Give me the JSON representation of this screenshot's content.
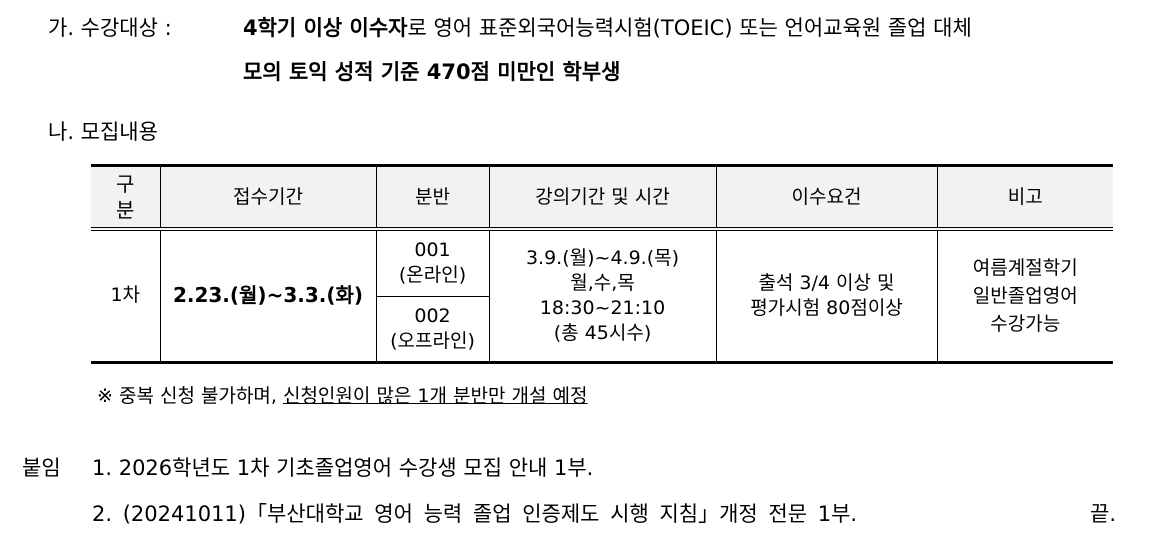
{
  "target": {
    "label": "가. 수강대상 :",
    "bold1": "4학기 이상 이수자",
    "rest1": "로 영어 표준외국어능력시험(TOEIC) 또는 언어교육원 졸업 대체",
    "line2": "모의 토익 성적 기준 470점 미만인 학부생"
  },
  "recruit": {
    "label": "나. 모집내용"
  },
  "table": {
    "headers": [
      "구 분",
      "접수기간",
      "분반",
      "강의기간 및 시간",
      "이수요건",
      "비고"
    ],
    "round": "1차",
    "period": "2.23.(월)~3.3.(화)",
    "section1": "001",
    "section1_type": "(온라인)",
    "section2": "002",
    "section2_type": "(오프라인)",
    "lecture": [
      "3.9.(월)~4.9.(목)",
      "월,수,목",
      "18:30~21:10",
      "(총 45시수)"
    ],
    "requirement": [
      "출석 3/4 이상 및",
      "평가시험 80점이상"
    ],
    "note": [
      "여름계절학기",
      "일반졸업영어",
      "수강가능"
    ]
  },
  "notice": {
    "prefix": "※ 중복 신청 불가하며, ",
    "underlined": "신청인원이 많은 1개 분반만 개설 예정"
  },
  "attachments": {
    "label": "붙임",
    "item1": "1. 2026학년도 1차 기초졸업영어 수강생 모집 안내 1부.",
    "item2": "2. (20241011)「부산대학교 영어 능력 졸업 인증제도 시행 지침」개정 전문 1부.",
    "end": "끝."
  }
}
